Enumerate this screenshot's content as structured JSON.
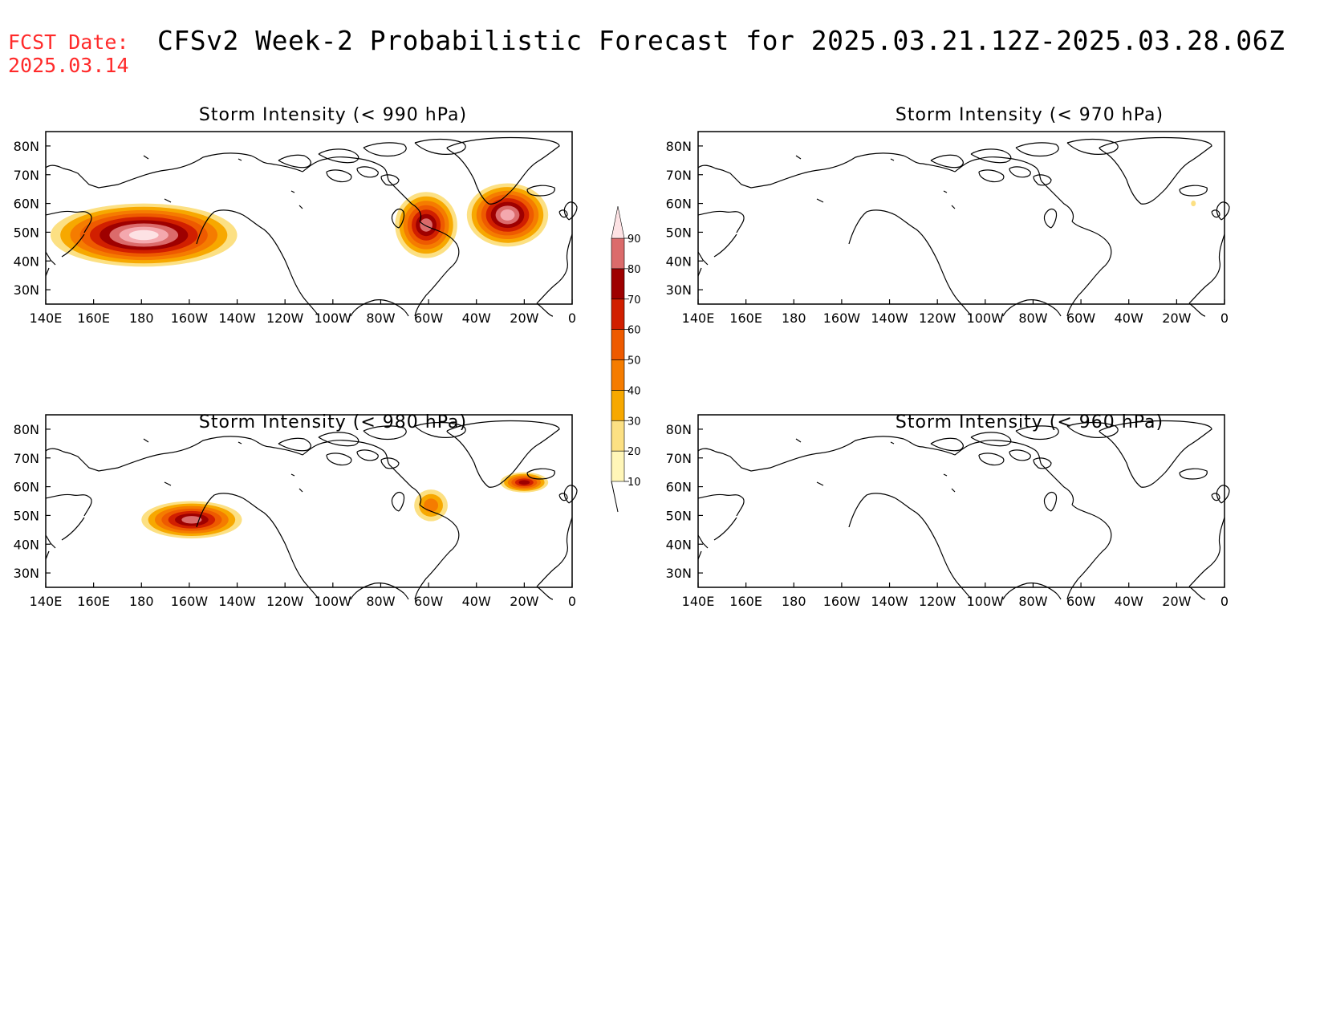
{
  "fcst_label": "FCST Date:",
  "fcst_date": "2025.03.14",
  "main_title": "CFSv2 Week-2 Probabilistic Forecast for 2025.03.21.12Z-2025.03.28.06Z",
  "panels": [
    {
      "title": "Storm Intensity (< 990 hPa)"
    },
    {
      "title": "Storm Intensity (< 970 hPa)"
    },
    {
      "title": "Storm Intensity (< 980 hPa)"
    },
    {
      "title": "Storm Intensity (< 960 hPa)"
    }
  ],
  "axes": {
    "lon_labels": [
      "140E",
      "160E",
      "180",
      "160W",
      "140W",
      "120W",
      "100W",
      "80W",
      "60W",
      "40W",
      "20W",
      "0"
    ],
    "lat_labels": [
      "80N",
      "70N",
      "60N",
      "50N",
      "40N",
      "30N"
    ]
  },
  "colorbar": {
    "labels": [
      "10",
      "20",
      "30",
      "40",
      "50",
      "60",
      "70",
      "80",
      "90"
    ],
    "colors": [
      "#fff6b8",
      "#fce083",
      "#f7a800",
      "#f57c00",
      "#ee5a00",
      "#d11f00",
      "#9e0000",
      "#db6b6b",
      "#f4a8ae",
      "#fde2e4"
    ]
  },
  "chart_data": {
    "type": "heatmap",
    "x_range_lon": [
      140,
      360
    ],
    "y_range_lat": [
      25,
      85
    ],
    "levels": [
      10,
      20,
      30,
      40,
      50,
      60,
      70,
      80,
      90
    ],
    "panels": [
      {
        "threshold": "< 990 hPa",
        "regions": [
          {
            "lon_range": [
              142,
              220
            ],
            "lat_range": [
              38,
              60
            ],
            "max_prob": 90
          },
          {
            "lon_range": [
              286,
              312
            ],
            "lat_range": [
              41,
              64
            ],
            "max_prob": 70
          },
          {
            "lon_range": [
              316,
              350
            ],
            "lat_range": [
              45,
              67
            ],
            "max_prob": 80
          }
        ]
      },
      {
        "threshold": "< 970 hPa",
        "regions": [
          {
            "lon_range": [
              346,
              348
            ],
            "lat_range": [
              59,
              61
            ],
            "max_prob": 10
          }
        ]
      },
      {
        "threshold": "< 980 hPa",
        "regions": [
          {
            "lon_range": [
              180,
              222
            ],
            "lat_range": [
              42,
              55
            ],
            "max_prob": 70
          },
          {
            "lon_range": [
              294,
              308
            ],
            "lat_range": [
              48,
              59
            ],
            "max_prob": 30
          },
          {
            "lon_range": [
              330,
              350
            ],
            "lat_range": [
              58,
              65
            ],
            "max_prob": 60
          }
        ]
      },
      {
        "threshold": "< 960 hPa",
        "regions": []
      }
    ]
  }
}
